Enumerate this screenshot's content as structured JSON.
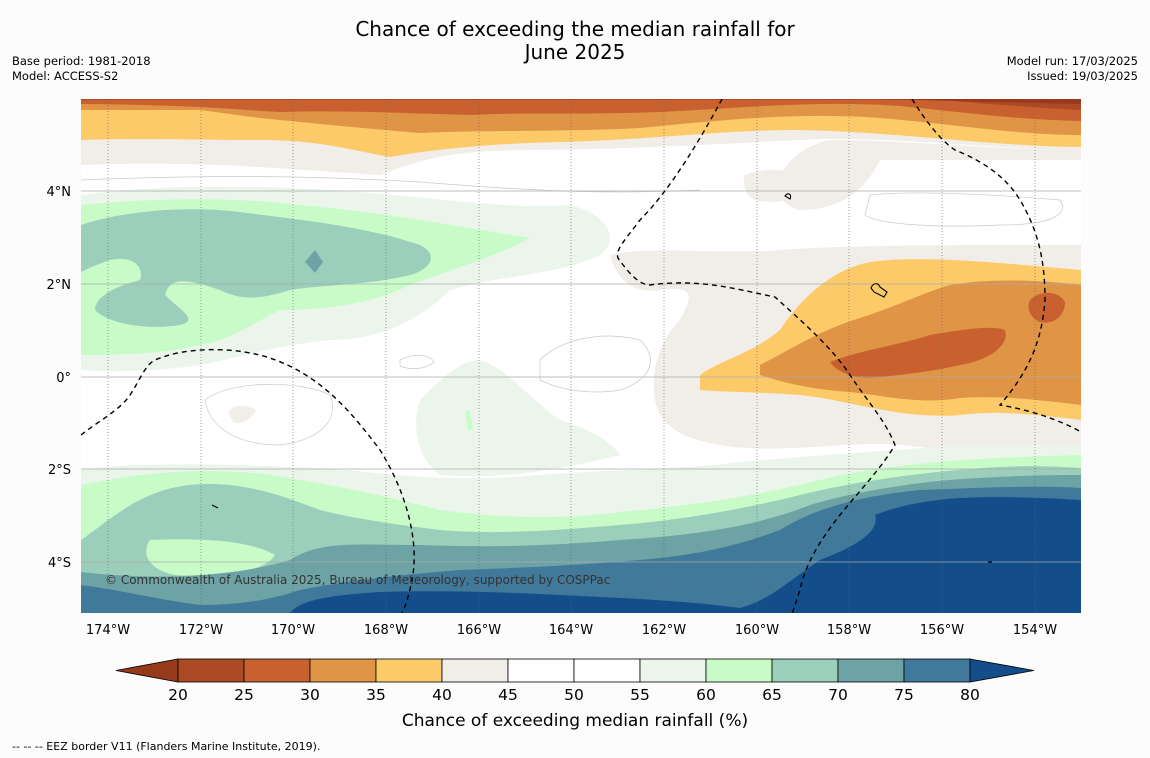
{
  "header": {
    "title_line1": "Chance of exceeding the median rainfall for",
    "title_line2": "June 2025",
    "base_period": "Base period: 1981-2018",
    "model": "Model: ACCESS-S2",
    "model_run": "Model run: 17/03/2025",
    "issued": "Issued: 19/03/2025"
  },
  "map": {
    "lon_ticks": [
      "174°W",
      "172°W",
      "170°W",
      "168°W",
      "166°W",
      "164°W",
      "162°W",
      "160°W",
      "158°W",
      "156°W",
      "154°W"
    ],
    "lat_ticks": [
      "4°N",
      "2°N",
      "0°",
      "2°S",
      "4°S"
    ],
    "copyright": "© Commonwealth of Australia 2025, Bureau of Meteorology, supported by COSPPac"
  },
  "legend": {
    "ticks": [
      "20",
      "25",
      "30",
      "35",
      "40",
      "45",
      "50",
      "55",
      "60",
      "65",
      "70",
      "75",
      "80"
    ],
    "colors": [
      "#ab4a25",
      "#c8602f",
      "#e09446",
      "#fdca69",
      "#f1ede8",
      "#fefefe",
      "#ffffff",
      "#ecf5ec",
      "#c9fbc9",
      "#9bcfbb",
      "#6ea3a6",
      "#41799b"
    ],
    "low_arrow_color": "#973a1c",
    "high_arrow_color": "#144e8a",
    "label": "Chance of exceeding median rainfall (%)"
  },
  "footer": {
    "note": "--  --  -- EEZ border V11 (Flanders Marine Institute, 2019)."
  }
}
